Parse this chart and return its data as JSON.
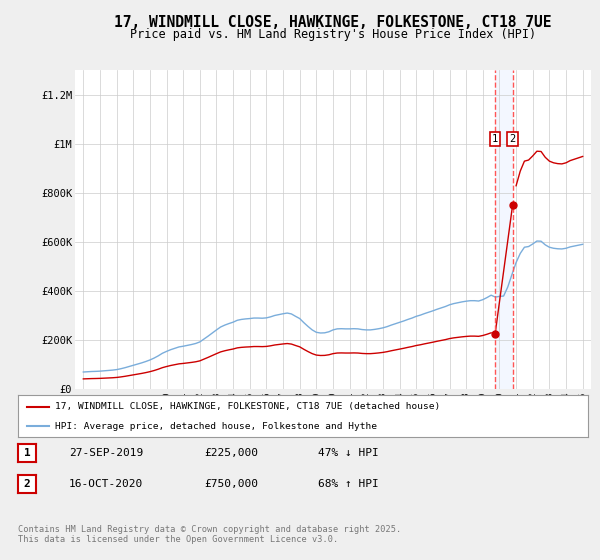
{
  "title": "17, WINDMILL CLOSE, HAWKINGE, FOLKESTONE, CT18 7UE",
  "subtitle": "Price paid vs. HM Land Registry's House Price Index (HPI)",
  "title_fontsize": 10.5,
  "subtitle_fontsize": 8.5,
  "background_color": "#efefef",
  "plot_bg_color": "#ffffff",
  "red_line_color": "#cc0000",
  "blue_line_color": "#7aaddb",
  "vline_color": "#ff5555",
  "vline_fill": "#e8f0ff",
  "ylim": [
    0,
    1300000
  ],
  "xlim": [
    1994.5,
    2025.5
  ],
  "yticks": [
    0,
    200000,
    400000,
    600000,
    800000,
    1000000,
    1200000
  ],
  "ytick_labels": [
    "£0",
    "£200K",
    "£400K",
    "£600K",
    "£800K",
    "£1M",
    "£1.2M"
  ],
  "xticks": [
    1995,
    1996,
    1997,
    1998,
    1999,
    2000,
    2001,
    2002,
    2003,
    2004,
    2005,
    2006,
    2007,
    2008,
    2009,
    2010,
    2011,
    2012,
    2013,
    2014,
    2015,
    2016,
    2017,
    2018,
    2019,
    2020,
    2021,
    2022,
    2023,
    2024,
    2025
  ],
  "sale1_date": 2019.74,
  "sale1_price": 225000,
  "sale2_date": 2020.79,
  "sale2_price": 750000,
  "legend_red": "17, WINDMILL CLOSE, HAWKINGE, FOLKESTONE, CT18 7UE (detached house)",
  "legend_blue": "HPI: Average price, detached house, Folkestone and Hythe",
  "table_row1": [
    "1",
    "27-SEP-2019",
    "£225,000",
    "47% ↓ HPI"
  ],
  "table_row2": [
    "2",
    "16-OCT-2020",
    "£750,000",
    "68% ↑ HPI"
  ],
  "footer": "Contains HM Land Registry data © Crown copyright and database right 2025.\nThis data is licensed under the Open Government Licence v3.0.",
  "hpi_index": {
    "1995Q1": 100,
    "1995Q2": 101.5,
    "1995Q3": 103,
    "1995Q4": 103.8,
    "1996Q1": 105,
    "1996Q2": 107,
    "1996Q3": 109,
    "1996Q4": 111,
    "1997Q1": 114,
    "1997Q2": 119,
    "1997Q3": 125,
    "1997Q4": 132,
    "1998Q1": 139,
    "1998Q2": 146,
    "1998Q3": 153,
    "1998Q4": 161,
    "1999Q1": 170,
    "1999Q2": 181,
    "1999Q3": 194,
    "1999Q4": 209,
    "2000Q1": 220,
    "2000Q2": 230,
    "2000Q3": 238,
    "2000Q4": 246,
    "2001Q1": 250,
    "2001Q2": 255,
    "2001Q3": 260,
    "2001Q4": 266,
    "2002Q1": 275,
    "2002Q2": 292,
    "2002Q3": 309,
    "2002Q4": 327,
    "2003Q1": 345,
    "2003Q2": 362,
    "2003Q3": 373,
    "2003Q4": 382,
    "2004Q1": 390,
    "2004Q2": 401,
    "2004Q3": 406,
    "2004Q4": 409,
    "2005Q1": 411,
    "2005Q2": 414,
    "2005Q3": 414,
    "2005Q4": 413,
    "2006Q1": 415,
    "2006Q2": 421,
    "2006Q3": 429,
    "2006Q4": 434,
    "2007Q1": 439,
    "2007Q2": 443,
    "2007Q3": 438,
    "2007Q4": 424,
    "2008Q1": 411,
    "2008Q2": 387,
    "2008Q3": 365,
    "2008Q4": 345,
    "2009Q1": 331,
    "2009Q2": 327,
    "2009Q3": 328,
    "2009Q4": 334,
    "2010Q1": 345,
    "2010Q2": 351,
    "2010Q3": 352,
    "2010Q4": 351,
    "2011Q1": 351,
    "2011Q2": 352,
    "2011Q3": 351,
    "2011Q4": 347,
    "2012Q1": 345,
    "2012Q2": 345,
    "2012Q3": 348,
    "2012Q4": 352,
    "2013Q1": 357,
    "2013Q2": 364,
    "2013Q3": 373,
    "2013Q4": 381,
    "2014Q1": 389,
    "2014Q2": 397,
    "2014Q3": 406,
    "2014Q4": 414,
    "2015Q1": 424,
    "2015Q2": 431,
    "2015Q3": 440,
    "2015Q4": 448,
    "2016Q1": 456,
    "2016Q2": 465,
    "2016Q3": 473,
    "2016Q4": 481,
    "2017Q1": 491,
    "2017Q2": 498,
    "2017Q3": 503,
    "2017Q4": 508,
    "2018Q1": 512,
    "2018Q2": 515,
    "2018Q3": 515,
    "2018Q4": 513,
    "2019Q1": 521,
    "2019Q2": 533,
    "2019Q3": 547,
    "2019Q4": 536,
    "2020Q1": 540,
    "2020Q2": 542,
    "2020Q3": 595,
    "2020Q4": 667,
    "2021Q1": 737,
    "2021Q2": 790,
    "2021Q3": 826,
    "2021Q4": 830,
    "2022Q1": 845,
    "2022Q2": 862,
    "2022Q3": 861,
    "2022Q4": 840,
    "2023Q1": 826,
    "2023Q2": 820,
    "2023Q3": 817,
    "2023Q4": 816,
    "2024Q1": 820,
    "2024Q2": 828,
    "2024Q3": 833,
    "2024Q4": 838,
    "2025Q1": 843
  }
}
